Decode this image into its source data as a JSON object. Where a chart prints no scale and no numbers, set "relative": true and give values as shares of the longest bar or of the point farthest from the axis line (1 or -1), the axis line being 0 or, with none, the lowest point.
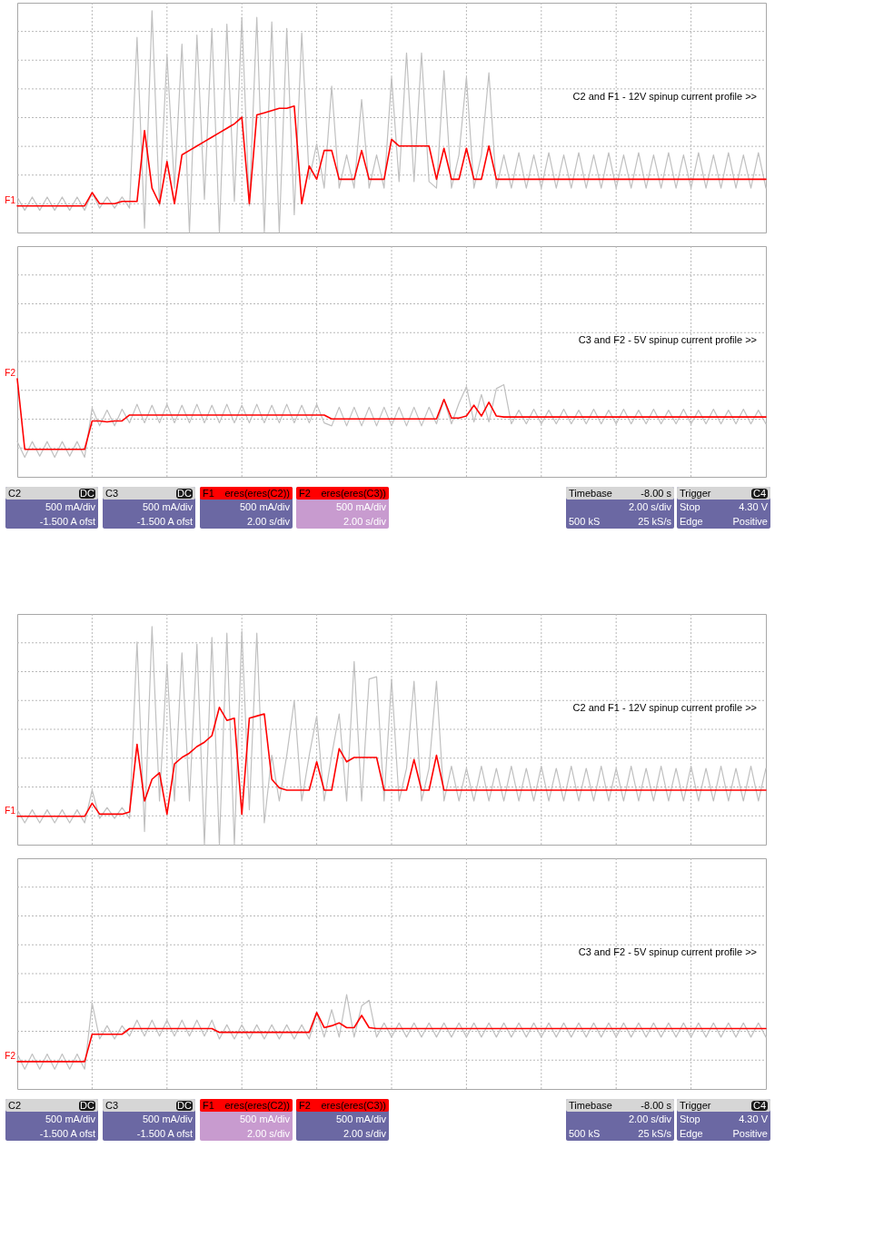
{
  "chart_data": [
    {
      "type": "line",
      "relative": true,
      "grid": true,
      "categories": [
        null,
        null,
        null,
        null,
        null,
        null,
        null,
        null,
        null,
        null,
        null,
        null,
        null,
        null,
        null,
        null,
        null,
        null,
        null,
        null,
        null,
        null,
        null,
        null,
        null,
        null,
        null,
        null,
        null,
        null,
        null,
        null,
        null,
        null,
        null,
        null,
        null,
        null,
        null,
        null,
        null,
        null,
        null,
        null,
        null,
        null,
        null,
        null,
        null,
        null,
        null,
        null,
        null,
        null,
        null,
        null,
        null,
        null,
        null,
        null,
        null,
        null,
        null,
        null,
        null,
        null,
        null,
        null,
        null,
        null,
        null,
        null,
        null,
        null,
        null,
        null,
        null,
        null,
        null,
        null,
        null,
        null,
        null,
        null,
        null,
        null,
        null,
        null,
        null,
        null,
        null,
        null,
        null,
        null,
        null,
        null,
        null,
        null,
        null,
        null,
        null
      ],
      "annotations": [
        "C2 and F1 - 12V spinup current profile >>"
      ],
      "series": [
        {
          "color": "#c0c0c0",
          "values": [
            0.16,
            0.1,
            0.16,
            0.1,
            0.16,
            0.1,
            0.16,
            0.1,
            0.16,
            0.1,
            0.18,
            0.11,
            0.16,
            0.11,
            0.16,
            0.11,
            0.88,
            0.02,
            1.0,
            0.12,
            0.8,
            0.2,
            0.85,
            0.0,
            0.89,
            0.15,
            0.92,
            0.0,
            0.94,
            0.14,
            0.97,
            0.12,
            0.97,
            0.0,
            0.95,
            0.0,
            0.92,
            0.08,
            0.9,
            0.24,
            0.4,
            0.2,
            0.66,
            0.2,
            0.35,
            0.2,
            0.6,
            0.2,
            0.35,
            0.2,
            0.7,
            0.23,
            0.81,
            0.23,
            0.81,
            0.23,
            0.2,
            0.73,
            0.2,
            0.35,
            0.7,
            0.2,
            0.35,
            0.72,
            0.2,
            0.35,
            0.2,
            0.36,
            0.2,
            0.35,
            0.2,
            0.36,
            0.2,
            0.35,
            0.2,
            0.36,
            0.2,
            0.35,
            0.2,
            0.36,
            0.2,
            0.35,
            0.2,
            0.36,
            0.2,
            0.35,
            0.2,
            0.36,
            0.2,
            0.35,
            0.2,
            0.36,
            0.2,
            0.35,
            0.2,
            0.36,
            0.2,
            0.35,
            0.2,
            0.36,
            0.2
          ]
        },
        {
          "name": "F1",
          "color": "#ff0000",
          "values": [
            0.12,
            0.12,
            0.12,
            0.12,
            0.12,
            0.12,
            0.12,
            0.12,
            0.12,
            0.12,
            0.18,
            0.13,
            0.13,
            0.13,
            0.14,
            0.14,
            0.14,
            0.46,
            0.2,
            0.13,
            0.32,
            0.13,
            0.35,
            0.37,
            0.39,
            0.41,
            0.43,
            0.45,
            0.47,
            0.49,
            0.52,
            0.13,
            0.53,
            0.54,
            0.55,
            0.56,
            0.56,
            0.57,
            0.13,
            0.3,
            0.24,
            0.37,
            0.37,
            0.24,
            0.24,
            0.24,
            0.37,
            0.24,
            0.24,
            0.24,
            0.42,
            0.39,
            0.39,
            0.39,
            0.39,
            0.39,
            0.24,
            0.38,
            0.24,
            0.24,
            0.38,
            0.24,
            0.24,
            0.39,
            0.24,
            0.24,
            0.24,
            0.24,
            0.24,
            0.24,
            0.24,
            0.24,
            0.24,
            0.24,
            0.24,
            0.24,
            0.24,
            0.24,
            0.24,
            0.24,
            0.24,
            0.24,
            0.24,
            0.24,
            0.24,
            0.24,
            0.24,
            0.24,
            0.24,
            0.24,
            0.24,
            0.24,
            0.24,
            0.24,
            0.24,
            0.24,
            0.24,
            0.24,
            0.24,
            0.24,
            0.24
          ]
        }
      ]
    },
    {
      "type": "line",
      "relative": true,
      "grid": true,
      "categories": [
        null,
        null,
        null,
        null,
        null,
        null,
        null,
        null,
        null,
        null,
        null,
        null,
        null,
        null,
        null,
        null,
        null,
        null,
        null,
        null,
        null,
        null,
        null,
        null,
        null,
        null,
        null,
        null,
        null,
        null,
        null,
        null,
        null,
        null,
        null,
        null,
        null,
        null,
        null,
        null,
        null,
        null,
        null,
        null,
        null,
        null,
        null,
        null,
        null,
        null,
        null,
        null,
        null,
        null,
        null,
        null,
        null,
        null,
        null,
        null,
        null,
        null,
        null,
        null,
        null,
        null,
        null,
        null,
        null,
        null,
        null,
        null,
        null,
        null,
        null,
        null,
        null,
        null,
        null,
        null,
        null,
        null,
        null,
        null,
        null,
        null,
        null,
        null,
        null,
        null,
        null,
        null,
        null,
        null,
        null,
        null,
        null,
        null,
        null,
        null,
        null
      ],
      "annotations": [
        "C3 and F2 - 5V spinup current profile >>"
      ],
      "series": [
        {
          "color": "#c0c0c0",
          "values": [
            0.36,
            0.2,
            0.36,
            0.21,
            0.36,
            0.2,
            0.36,
            0.21,
            0.36,
            0.2,
            0.7,
            0.52,
            0.68,
            0.52,
            0.69,
            0.55,
            0.74,
            0.55,
            0.73,
            0.55,
            0.74,
            0.55,
            0.73,
            0.55,
            0.74,
            0.55,
            0.73,
            0.55,
            0.74,
            0.55,
            0.73,
            0.55,
            0.74,
            0.55,
            0.73,
            0.55,
            0.74,
            0.55,
            0.73,
            0.55,
            0.74,
            0.55,
            0.52,
            0.71,
            0.52,
            0.71,
            0.52,
            0.71,
            0.52,
            0.71,
            0.52,
            0.71,
            0.52,
            0.71,
            0.52,
            0.71,
            0.54,
            0.79,
            0.54,
            0.75,
            0.92,
            0.56,
            0.84,
            0.56,
            0.9,
            0.94,
            0.54,
            0.68,
            0.54,
            0.69,
            0.54,
            0.68,
            0.54,
            0.69,
            0.54,
            0.68,
            0.54,
            0.69,
            0.54,
            0.68,
            0.54,
            0.69,
            0.54,
            0.68,
            0.54,
            0.69,
            0.54,
            0.68,
            0.54,
            0.69,
            0.54,
            0.68,
            0.54,
            0.69,
            0.54,
            0.68,
            0.54,
            0.69,
            0.54,
            0.68,
            0.54
          ]
        },
        {
          "name": "F2",
          "color": "#ff0000",
          "values": [
            1.0,
            0.28,
            0.28,
            0.28,
            0.28,
            0.28,
            0.28,
            0.28,
            0.28,
            0.28,
            0.57,
            0.57,
            0.56,
            0.57,
            0.57,
            0.63,
            0.63,
            0.63,
            0.63,
            0.63,
            0.63,
            0.63,
            0.63,
            0.63,
            0.63,
            0.63,
            0.63,
            0.63,
            0.63,
            0.63,
            0.63,
            0.63,
            0.63,
            0.63,
            0.63,
            0.63,
            0.63,
            0.63,
            0.63,
            0.63,
            0.63,
            0.63,
            0.59,
            0.59,
            0.59,
            0.59,
            0.59,
            0.59,
            0.59,
            0.59,
            0.59,
            0.59,
            0.59,
            0.59,
            0.59,
            0.59,
            0.59,
            0.79,
            0.6,
            0.6,
            0.62,
            0.73,
            0.62,
            0.76,
            0.62,
            0.61,
            0.61,
            0.61,
            0.61,
            0.61,
            0.61,
            0.61,
            0.61,
            0.61,
            0.61,
            0.61,
            0.61,
            0.61,
            0.61,
            0.61,
            0.61,
            0.61,
            0.61,
            0.61,
            0.61,
            0.61,
            0.61,
            0.61,
            0.61,
            0.61,
            0.61,
            0.61,
            0.61,
            0.61,
            0.61,
            0.61,
            0.61,
            0.61,
            0.61,
            0.61,
            0.61
          ]
        }
      ]
    },
    {
      "type": "other",
      "annotations": [
        "C2",
        "DC",
        "500 mA/div",
        "-1.500 A ofst",
        "C3",
        "DC",
        "500 mA/div",
        "-1.500 A ofst",
        "F1",
        "eres(eres(C2))",
        "500 mA/div",
        "2.00 s/div",
        "F2",
        "eres(eres(C3))",
        "500 mA/div",
        "2.00 s/div",
        "Timebase",
        "-8.00 s",
        "2.00 s/div",
        "500 kS",
        "25 kS/s",
        "Trigger",
        "C4",
        "Stop",
        "4.30 V",
        "Edge",
        "Positive"
      ],
      "colors": [
        "#6b68a3",
        "#6b68a3",
        "#6b68a3",
        "#c89bcf",
        "#6b68a3",
        "#6b68a3"
      ]
    },
    {
      "type": "line",
      "relative": true,
      "grid": true,
      "categories": [
        null,
        null,
        null,
        null,
        null,
        null,
        null,
        null,
        null,
        null,
        null,
        null,
        null,
        null,
        null,
        null,
        null,
        null,
        null,
        null,
        null,
        null,
        null,
        null,
        null,
        null,
        null,
        null,
        null,
        null,
        null,
        null,
        null,
        null,
        null,
        null,
        null,
        null,
        null,
        null,
        null,
        null,
        null,
        null,
        null,
        null,
        null,
        null,
        null,
        null,
        null,
        null,
        null,
        null,
        null,
        null,
        null,
        null,
        null,
        null,
        null,
        null,
        null,
        null,
        null,
        null,
        null,
        null,
        null,
        null,
        null,
        null,
        null,
        null,
        null,
        null,
        null,
        null,
        null,
        null,
        null,
        null,
        null,
        null,
        null,
        null,
        null,
        null,
        null,
        null,
        null,
        null,
        null,
        null,
        null,
        null,
        null,
        null,
        null,
        null,
        null
      ],
      "annotations": [
        "C2 and F1 - 12V spinup current profile >>"
      ],
      "series": [
        {
          "color": "#c0c0c0",
          "values": [
            0.16,
            0.1,
            0.16,
            0.1,
            0.16,
            0.1,
            0.16,
            0.1,
            0.16,
            0.1,
            0.25,
            0.12,
            0.17,
            0.12,
            0.17,
            0.12,
            0.93,
            0.06,
            1.0,
            0.2,
            0.83,
            0.2,
            0.88,
            0.2,
            0.92,
            0.0,
            0.95,
            0.0,
            0.97,
            0.0,
            0.98,
            0.16,
            0.97,
            0.1,
            0.41,
            0.2,
            0.41,
            0.66,
            0.2,
            0.41,
            0.59,
            0.2,
            0.41,
            0.6,
            0.2,
            0.84,
            0.2,
            0.76,
            0.77,
            0.2,
            0.76,
            0.2,
            0.35,
            0.75,
            0.2,
            0.35,
            0.75,
            0.2,
            0.36,
            0.2,
            0.35,
            0.2,
            0.36,
            0.2,
            0.35,
            0.2,
            0.36,
            0.2,
            0.35,
            0.2,
            0.36,
            0.2,
            0.35,
            0.2,
            0.36,
            0.2,
            0.35,
            0.2,
            0.36,
            0.2,
            0.35,
            0.2,
            0.36,
            0.2,
            0.35,
            0.2,
            0.36,
            0.2,
            0.35,
            0.2,
            0.36,
            0.2,
            0.35,
            0.2,
            0.36,
            0.2,
            0.35,
            0.2,
            0.36,
            0.2,
            0.35
          ]
        },
        {
          "name": "F1",
          "color": "#ff0000",
          "values": [
            0.13,
            0.13,
            0.13,
            0.13,
            0.13,
            0.13,
            0.13,
            0.13,
            0.13,
            0.13,
            0.19,
            0.14,
            0.14,
            0.14,
            0.14,
            0.15,
            0.46,
            0.2,
            0.3,
            0.33,
            0.14,
            0.37,
            0.4,
            0.42,
            0.45,
            0.47,
            0.5,
            0.63,
            0.57,
            0.58,
            0.14,
            0.58,
            0.59,
            0.6,
            0.3,
            0.26,
            0.25,
            0.25,
            0.25,
            0.25,
            0.38,
            0.25,
            0.25,
            0.44,
            0.38,
            0.4,
            0.4,
            0.4,
            0.4,
            0.25,
            0.25,
            0.25,
            0.25,
            0.39,
            0.25,
            0.25,
            0.41,
            0.25,
            0.25,
            0.25,
            0.25,
            0.25,
            0.25,
            0.25,
            0.25,
            0.25,
            0.25,
            0.25,
            0.25,
            0.25,
            0.25,
            0.25,
            0.25,
            0.25,
            0.25,
            0.25,
            0.25,
            0.25,
            0.25,
            0.25,
            0.25,
            0.25,
            0.25,
            0.25,
            0.25,
            0.25,
            0.25,
            0.25,
            0.25,
            0.25,
            0.25,
            0.25,
            0.25,
            0.25,
            0.25,
            0.25,
            0.25,
            0.25,
            0.25,
            0.25,
            0.25
          ]
        }
      ]
    },
    {
      "type": "line",
      "relative": true,
      "grid": true,
      "categories": [
        null,
        null,
        null,
        null,
        null,
        null,
        null,
        null,
        null,
        null,
        null,
        null,
        null,
        null,
        null,
        null,
        null,
        null,
        null,
        null,
        null,
        null,
        null,
        null,
        null,
        null,
        null,
        null,
        null,
        null,
        null,
        null,
        null,
        null,
        null,
        null,
        null,
        null,
        null,
        null,
        null,
        null,
        null,
        null,
        null,
        null,
        null,
        null,
        null,
        null,
        null,
        null,
        null,
        null,
        null,
        null,
        null,
        null,
        null,
        null,
        null,
        null,
        null,
        null,
        null,
        null,
        null,
        null,
        null,
        null,
        null,
        null,
        null,
        null,
        null,
        null,
        null,
        null,
        null,
        null,
        null,
        null,
        null,
        null,
        null,
        null,
        null,
        null,
        null,
        null,
        null,
        null,
        null,
        null,
        null,
        null,
        null,
        null,
        null,
        null,
        null
      ],
      "annotations": [
        "C3 and F2 - 5V spinup current profile >>"
      ],
      "series": [
        {
          "color": "#c0c0c0",
          "values": [
            0.37,
            0.21,
            0.37,
            0.21,
            0.37,
            0.21,
            0.37,
            0.21,
            0.37,
            0.21,
            0.91,
            0.53,
            0.67,
            0.53,
            0.67,
            0.56,
            0.73,
            0.56,
            0.73,
            0.56,
            0.73,
            0.56,
            0.73,
            0.56,
            0.73,
            0.56,
            0.73,
            0.53,
            0.68,
            0.53,
            0.68,
            0.53,
            0.68,
            0.53,
            0.68,
            0.53,
            0.68,
            0.53,
            0.68,
            0.53,
            0.81,
            0.55,
            0.84,
            0.55,
            1.0,
            0.55,
            0.88,
            0.94,
            0.55,
            0.7,
            0.55,
            0.7,
            0.55,
            0.7,
            0.55,
            0.7,
            0.55,
            0.7,
            0.55,
            0.7,
            0.55,
            0.7,
            0.55,
            0.7,
            0.55,
            0.7,
            0.55,
            0.7,
            0.55,
            0.7,
            0.55,
            0.7,
            0.55,
            0.7,
            0.55,
            0.7,
            0.55,
            0.7,
            0.55,
            0.7,
            0.55,
            0.7,
            0.55,
            0.7,
            0.55,
            0.7,
            0.55,
            0.7,
            0.55,
            0.7,
            0.55,
            0.7,
            0.55,
            0.7,
            0.55,
            0.7,
            0.55,
            0.7,
            0.55,
            0.7,
            0.55
          ]
        },
        {
          "name": "F2",
          "color": "#ff0000",
          "values": [
            0.29,
            0.29,
            0.29,
            0.29,
            0.29,
            0.29,
            0.29,
            0.29,
            0.29,
            0.29,
            0.58,
            0.58,
            0.58,
            0.58,
            0.58,
            0.64,
            0.64,
            0.64,
            0.64,
            0.64,
            0.64,
            0.64,
            0.64,
            0.64,
            0.64,
            0.64,
            0.64,
            0.6,
            0.6,
            0.6,
            0.6,
            0.6,
            0.6,
            0.6,
            0.6,
            0.6,
            0.6,
            0.6,
            0.6,
            0.6,
            0.81,
            0.65,
            0.67,
            0.7,
            0.65,
            0.65,
            0.78,
            0.65,
            0.64,
            0.64,
            0.64,
            0.64,
            0.64,
            0.64,
            0.64,
            0.64,
            0.64,
            0.64,
            0.64,
            0.64,
            0.64,
            0.64,
            0.64,
            0.64,
            0.64,
            0.64,
            0.64,
            0.64,
            0.64,
            0.64,
            0.64,
            0.64,
            0.64,
            0.64,
            0.64,
            0.64,
            0.64,
            0.64,
            0.64,
            0.64,
            0.64,
            0.64,
            0.64,
            0.64,
            0.64,
            0.64,
            0.64,
            0.64,
            0.64,
            0.64,
            0.64,
            0.64,
            0.64,
            0.64,
            0.64,
            0.64,
            0.64,
            0.64,
            0.64,
            0.64,
            0.64
          ]
        }
      ]
    },
    {
      "type": "other",
      "annotations": [
        "C2",
        "DC",
        "500 mA/div",
        "-1.500 A ofst",
        "C3",
        "DC",
        "500 mA/div",
        "-1.500 A ofst",
        "F1",
        "eres(eres(C2))",
        "500 mA/div",
        "2.00 s/div",
        "F2",
        "eres(eres(C3))",
        "500 mA/div",
        "2.00 s/div",
        "Timebase",
        "-8.00 s",
        "2.00 s/div",
        "500 kS",
        "25 kS/s",
        "Trigger",
        "C4",
        "Stop",
        "4.30 V",
        "Edge",
        "Positive"
      ],
      "colors": [
        "#6b68a3",
        "#6b68a3",
        "#c89bcf",
        "#6b68a3",
        "#6b68a3",
        "#6b68a3"
      ]
    }
  ]
}
